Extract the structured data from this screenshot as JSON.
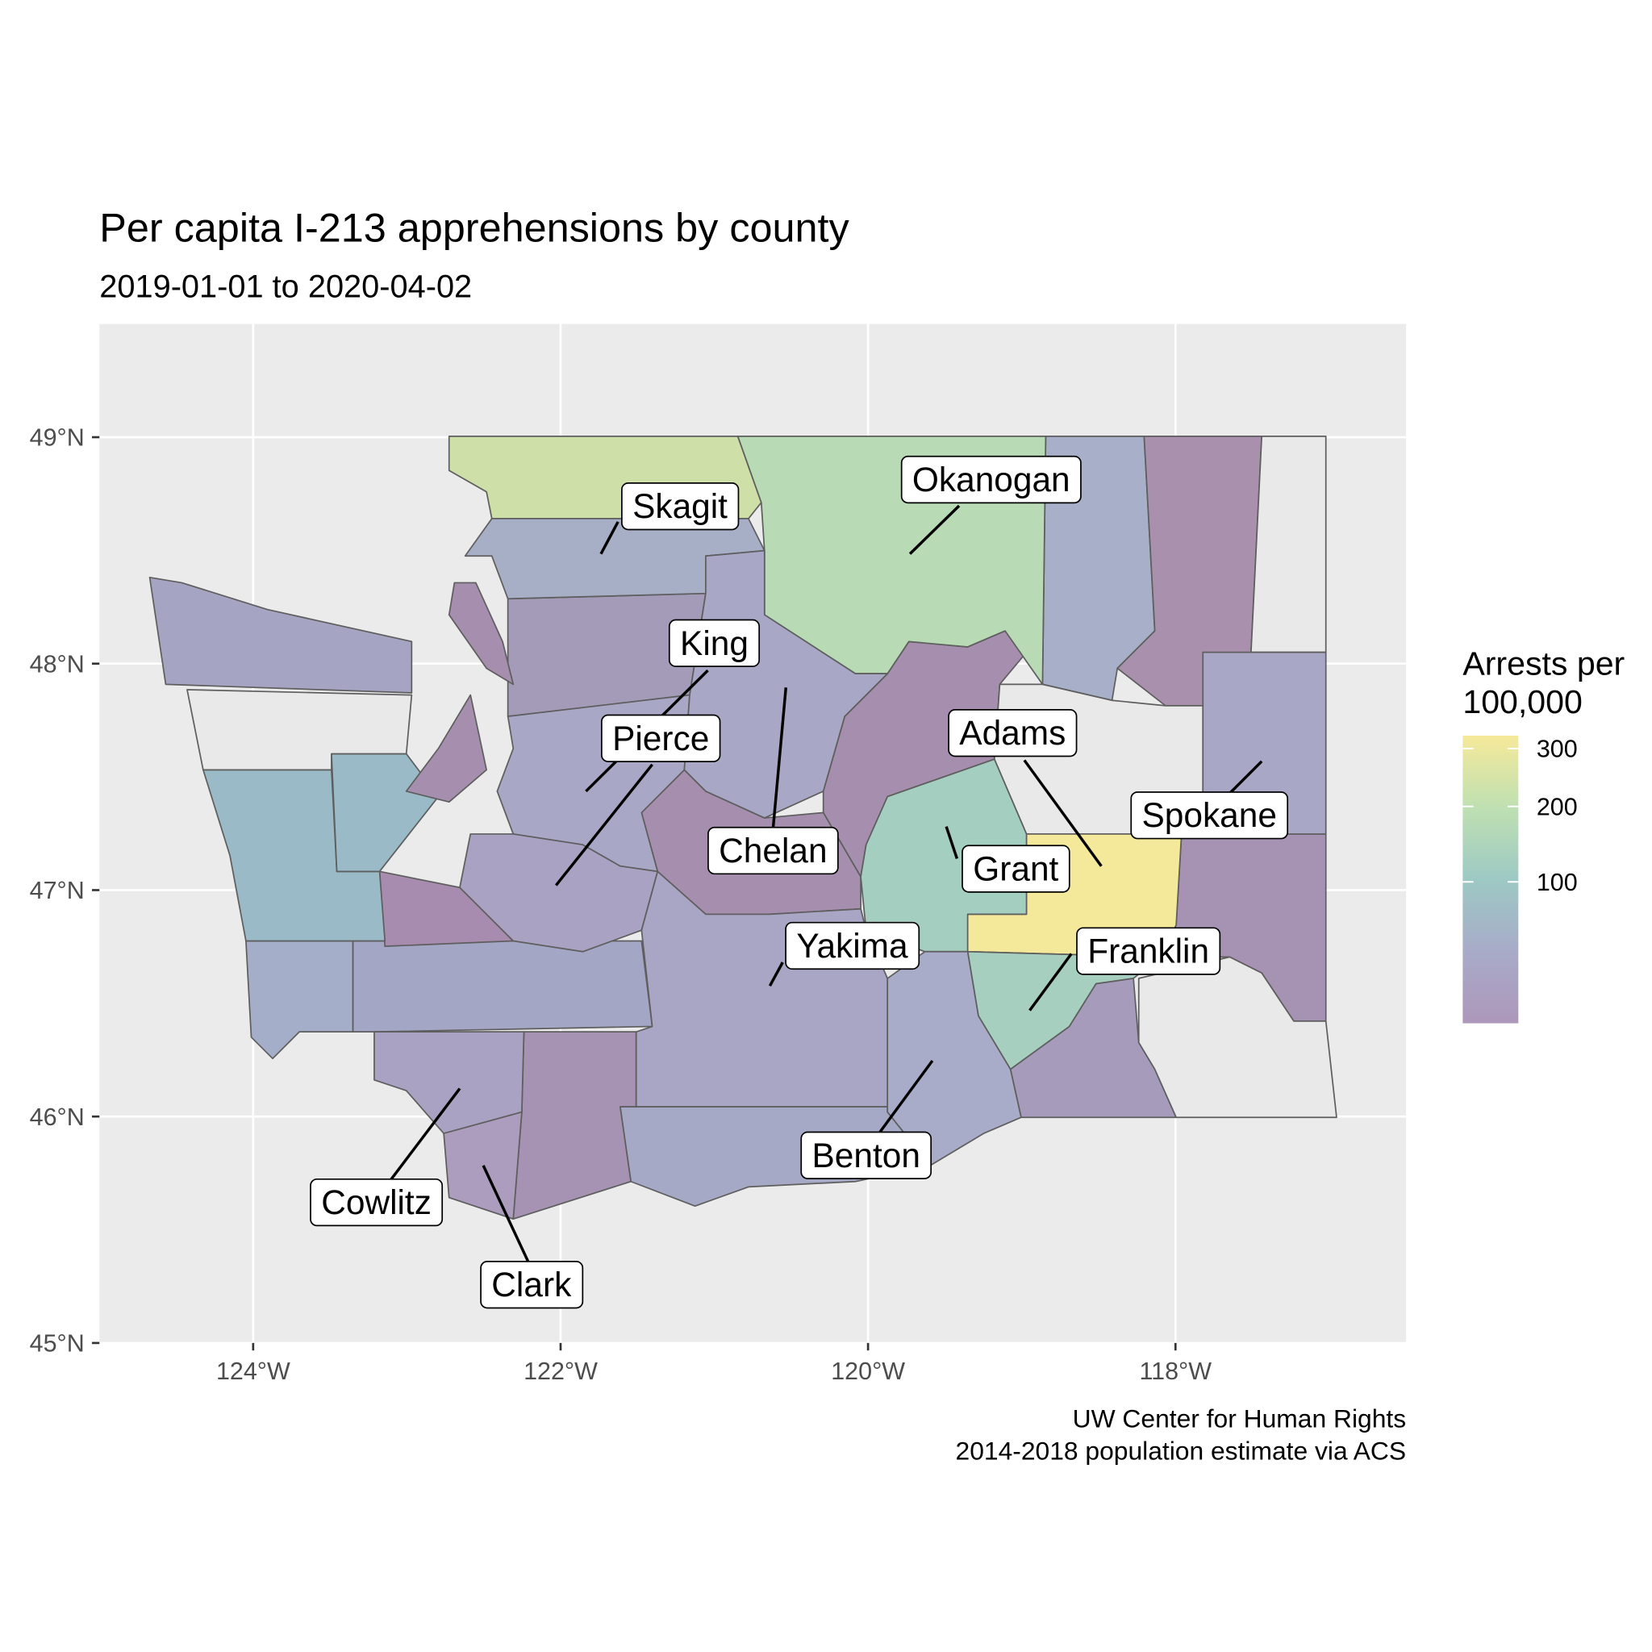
{
  "chart_data": {
    "type": "choropleth",
    "title": "Per capita I-213 apprehensions by county",
    "subtitle": "2019-01-01 to 2020-04-02",
    "caption": [
      "UW Center for Human Rights",
      "2014-2018 population estimate via ACS"
    ],
    "legend_title": [
      "Arrests per",
      "100,000"
    ],
    "xlim": [
      -125,
      -116.5
    ],
    "ylim": [
      45,
      49.5
    ],
    "xticks": [
      {
        "value": -124,
        "label": "124°W"
      },
      {
        "value": -122,
        "label": "122°W"
      },
      {
        "value": -120,
        "label": "120°W"
      },
      {
        "value": -118,
        "label": "118°W"
      }
    ],
    "yticks": [
      {
        "value": 45,
        "label": "45°N"
      },
      {
        "value": 46,
        "label": "46°N"
      },
      {
        "value": 47,
        "label": "47°N"
      },
      {
        "value": 48,
        "label": "48°N"
      },
      {
        "value": 49,
        "label": "49°N"
      }
    ],
    "grid": true,
    "color_scale": "sqrt",
    "color_lim": [
      5,
      325
    ],
    "color_ticks": [
      100,
      200,
      300
    ],
    "colors": [
      "#ad97bb",
      "#a8abc8",
      "#9dc9c4",
      "#bfe0b2",
      "#f6e99a"
    ],
    "regions": [
      {
        "name": "Skagit",
        "value": 45
      },
      {
        "name": "Okanogan",
        "value": 175
      },
      {
        "name": "King",
        "value": 30
      },
      {
        "name": "Pierce",
        "value": 20
      },
      {
        "name": "Chelan",
        "value": 30
      },
      {
        "name": "Adams",
        "value": 320
      },
      {
        "name": "Grant",
        "value": 120
      },
      {
        "name": "Spokane",
        "value": 30
      },
      {
        "name": "Franklin",
        "value": 125
      },
      {
        "name": "Yakima",
        "value": 25
      },
      {
        "name": "Benton",
        "value": 40
      },
      {
        "name": "Cowlitz",
        "value": 20
      },
      {
        "name": "Clark",
        "value": 10
      }
    ]
  }
}
